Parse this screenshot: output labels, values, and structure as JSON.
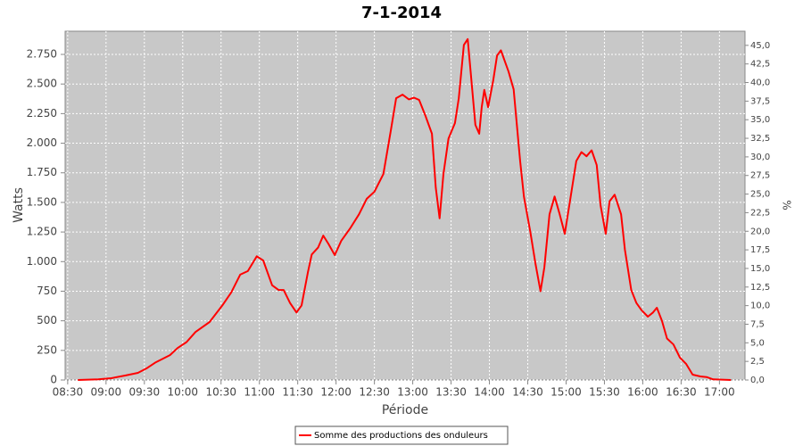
{
  "chart_data": {
    "type": "line",
    "title": "7-1-2014",
    "x_label": "Période",
    "y_label": "Watts",
    "y2_label": "%",
    "x": [
      "08:38",
      "08:54",
      "09:04",
      "09:15",
      "09:25",
      "09:32",
      "09:39",
      "09:50",
      "09:56",
      "10:03",
      "10:10",
      "10:21",
      "10:31",
      "10:38",
      "10:45",
      "10:51",
      "10:58",
      "11:03",
      "11:10",
      "11:15",
      "11:19",
      "11:24",
      "11:29",
      "11:33",
      "11:38",
      "11:41",
      "11:46",
      "11:50",
      "11:54",
      "11:59",
      "12:04",
      "12:11",
      "12:18",
      "12:24",
      "12:30",
      "12:37",
      "12:43",
      "12:47",
      "12:52",
      "12:57",
      "13:01",
      "13:05",
      "13:10",
      "13:15",
      "13:18",
      "13:21",
      "13:24",
      "13:28",
      "13:33",
      "13:36",
      "13:40",
      "13:43",
      "13:45",
      "13:49",
      "13:52",
      "13:54",
      "13:56",
      "13:59",
      "14:03",
      "14:06",
      "14:09",
      "14:15",
      "14:19",
      "14:24",
      "14:27",
      "14:32",
      "14:36",
      "14:40",
      "14:43",
      "14:47",
      "14:51",
      "14:55",
      "14:59",
      "15:03",
      "15:08",
      "15:12",
      "15:16",
      "15:20",
      "15:24",
      "15:27",
      "15:31",
      "15:34",
      "15:38",
      "15:43",
      "15:46",
      "15:51",
      "15:55",
      "15:59",
      "16:04",
      "16:08",
      "16:11",
      "16:15",
      "16:19",
      "16:24",
      "16:29",
      "16:34",
      "16:39",
      "16:45",
      "16:50",
      "16:55",
      "17:09"
    ],
    "series": [
      {
        "name": "Somme des productions des onduleurs",
        "color": "#ff0000",
        "values": [
          0,
          5,
          15,
          38,
          60,
          100,
          150,
          210,
          270,
          320,
          405,
          490,
          630,
          740,
          890,
          920,
          1045,
          1010,
          800,
          760,
          760,
          650,
          570,
          630,
          910,
          1060,
          1120,
          1220,
          1150,
          1055,
          1175,
          1280,
          1400,
          1530,
          1590,
          1740,
          2115,
          2380,
          2410,
          2370,
          2385,
          2365,
          2230,
          2080,
          1625,
          1365,
          1740,
          2040,
          2170,
          2380,
          2830,
          2880,
          2645,
          2155,
          2080,
          2305,
          2450,
          2305,
          2530,
          2740,
          2785,
          2605,
          2455,
          1855,
          1550,
          1250,
          985,
          750,
          950,
          1400,
          1550,
          1400,
          1235,
          1510,
          1850,
          1925,
          1890,
          1940,
          1815,
          1475,
          1235,
          1510,
          1565,
          1400,
          1100,
          760,
          650,
          590,
          535,
          570,
          610,
          500,
          350,
          300,
          190,
          135,
          45,
          30,
          25,
          5,
          0
        ]
      }
    ],
    "xlim": [
      "08:28",
      "17:20"
    ],
    "xticks": [
      "08:30",
      "09:00",
      "09:30",
      "10:00",
      "10:30",
      "11:00",
      "11:30",
      "12:00",
      "12:30",
      "13:00",
      "13:30",
      "14:00",
      "14:30",
      "15:00",
      "15:30",
      "16:00",
      "16:30",
      "17:00"
    ],
    "ylim": [
      0,
      2946
    ],
    "yticks": [
      0,
      250,
      500,
      750,
      {
        "value": 1000,
        "label": "1.000"
      },
      {
        "value": 1250,
        "label": "1.250"
      },
      {
        "value": 1500,
        "label": "1.500"
      },
      {
        "value": 1750,
        "label": "1.750"
      },
      {
        "value": 2000,
        "label": "2.000"
      },
      {
        "value": 2250,
        "label": "2.250"
      },
      {
        "value": 2500,
        "label": "2.500"
      },
      {
        "value": 2750,
        "label": "2.750"
      }
    ],
    "y2lim": [
      0,
      46.9
    ],
    "y2ticks": [
      {
        "value": 0,
        "label": "0,0"
      },
      {
        "value": 2.5,
        "label": "2,5"
      },
      {
        "value": 5,
        "label": "5,0"
      },
      {
        "value": 7.5,
        "label": "7,5"
      },
      {
        "value": 10,
        "label": "10,0"
      },
      {
        "value": 12.5,
        "label": "12,5"
      },
      {
        "value": 15,
        "label": "15,0"
      },
      {
        "value": 17.5,
        "label": "17,5"
      },
      {
        "value": 20,
        "label": "20,0"
      },
      {
        "value": 22.5,
        "label": "22,5"
      },
      {
        "value": 25,
        "label": "25,0"
      },
      {
        "value": 27.5,
        "label": "27,5"
      },
      {
        "value": 30,
        "label": "30,0"
      },
      {
        "value": 32.5,
        "label": "32,5"
      },
      {
        "value": 35,
        "label": "35,0"
      },
      {
        "value": 37.5,
        "label": "37,5"
      },
      {
        "value": 40,
        "label": "40,0"
      },
      {
        "value": 42.5,
        "label": "42,5"
      },
      {
        "value": 45,
        "label": "45,0"
      }
    ],
    "grid": true
  }
}
